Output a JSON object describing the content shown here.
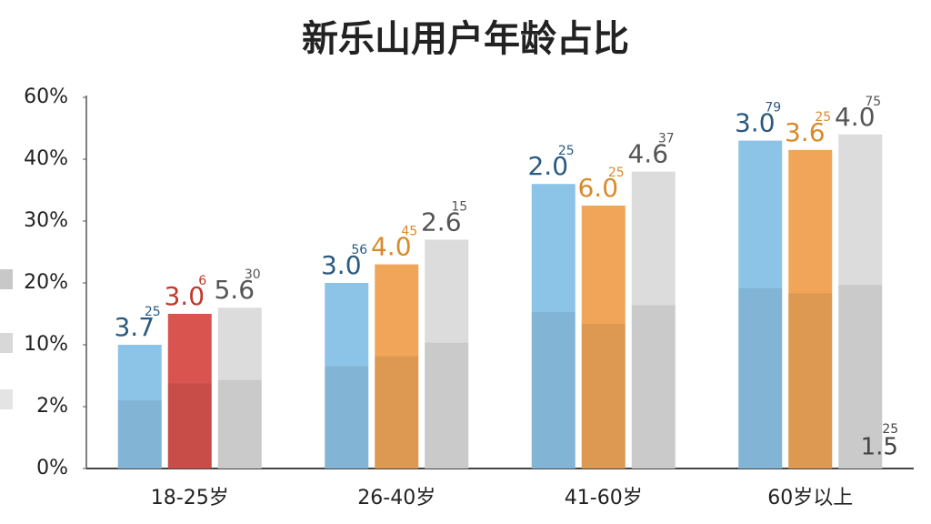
{
  "chart_data": {
    "type": "bar",
    "title": "新乐山用户年龄占比",
    "categories": [
      "18-25岁",
      "26-40岁",
      "41-60岁",
      "60岁以上"
    ],
    "yticks": [
      {
        "value": 0,
        "label": "0%"
      },
      {
        "value": 2,
        "label": "2%"
      },
      {
        "value": 10,
        "label": "10%"
      },
      {
        "value": 20,
        "label": "20%"
      },
      {
        "value": 30,
        "label": "30%"
      },
      {
        "value": 40,
        "label": "40%"
      },
      {
        "value": 60,
        "label": "60%"
      }
    ],
    "ylim": [
      0,
      60
    ],
    "series": [
      {
        "color": "#8cc4e8",
        "colors": [
          "#8cc4e8",
          "#8cc4e8",
          "#8cc4e8",
          "#8cc4e8"
        ],
        "values": [
          10,
          20,
          36,
          46
        ],
        "labels": [
          "3.7",
          "3.0",
          "2.0",
          "3.0"
        ],
        "sup": [
          "25",
          "56",
          "25",
          "79"
        ]
      },
      {
        "color": "#f0a558",
        "colors": [
          "#d9534f",
          "#f0a558",
          "#f0a558",
          "#f0a558"
        ],
        "values": [
          15,
          23,
          32.5,
          43
        ],
        "labels": [
          "3.0",
          "4.0",
          "6.0",
          "3.6"
        ],
        "sup": [
          "6",
          "45",
          "25",
          "25"
        ]
      },
      {
        "color": "#dcdcdc",
        "colors": [
          "#dcdcdc",
          "#dcdcdc",
          "#dcdcdc",
          "#dcdcdc"
        ],
        "values": [
          16,
          27,
          38,
          48
        ],
        "labels": [
          "5.6",
          "2.6",
          "4.6",
          "4.0"
        ],
        "sup": [
          "30",
          "15",
          "37",
          "75"
        ]
      }
    ],
    "annotation": {
      "text": "1.5",
      "sup": "25"
    }
  }
}
